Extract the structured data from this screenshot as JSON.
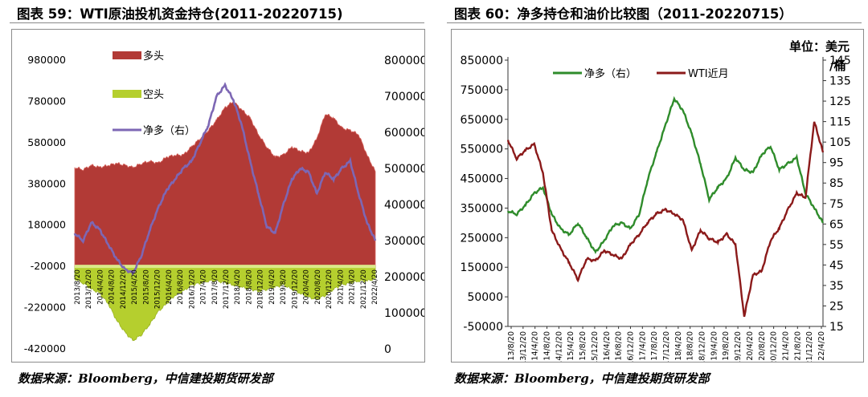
{
  "left": {
    "title": "图表 59：WTI原油投机资金持仓(2011-20220715)",
    "source": "数据来源：Bloomberg，中信建投期货研发部"
  },
  "right": {
    "title": "图表 60：净多持仓和油价比较图（2011-20220715）",
    "source": "数据来源：Bloomberg，中信建投期货研发部"
  },
  "colors": {
    "long_fill": "#b23a36",
    "long_fill_light": "#d4625c",
    "short_fill": "#b5cf2e",
    "net_line_left": "#7d67b4",
    "net_line_right": "#2f8c2b",
    "wti_line": "#8b1a1a"
  },
  "chart_data": [
    {
      "type": "area",
      "legend": [
        "多头",
        "空头",
        "净多（右）"
      ],
      "legend_position": "top-left",
      "x_ticks": [
        "2013/8/20",
        "2013/12/20",
        "2014/4/20",
        "2014/8/20",
        "2014/12/20",
        "2015/4/20",
        "2015/8/20",
        "2015/12/20",
        "2016/4/20",
        "2016/8/20",
        "2016/12/20",
        "2017/4/20",
        "2017/8/20",
        "2017/12/20",
        "2018/4/20",
        "2018/8/20",
        "2018/12/20",
        "2019/4/20",
        "2019/8/20",
        "2019/12/20",
        "2020/4/20",
        "2020/8/20",
        "2020/12/20",
        "2021/4/20",
        "2021/8/20",
        "2021/12/20",
        "2022/4/20"
      ],
      "y_left": {
        "ticks": [
          "980000",
          "780000",
          "580000",
          "380000",
          "180000",
          "-20000",
          "-220000",
          "-420000"
        ],
        "range": [
          -420000,
          980000
        ]
      },
      "y_right": {
        "ticks": [
          "800000",
          "700000",
          "600000",
          "500000",
          "400000",
          "300000",
          "200000",
          "100000",
          "0"
        ],
        "range": [
          0,
          800000
        ]
      },
      "grid": false,
      "series": [
        {
          "name": "多头",
          "axis": "left",
          "x": [
            0,
            1,
            2,
            3,
            4,
            5,
            6,
            7,
            8,
            9,
            10,
            11,
            12,
            13,
            14,
            15,
            16,
            17,
            18,
            19,
            20,
            21,
            22,
            23,
            24,
            25,
            26,
            27,
            28,
            29,
            30,
            31,
            32,
            33,
            34,
            35,
            36
          ],
          "values": [
            460000,
            450000,
            470000,
            460000,
            470000,
            480000,
            470000,
            460000,
            480000,
            490000,
            480000,
            510000,
            520000,
            520000,
            560000,
            600000,
            640000,
            690000,
            750000,
            780000,
            740000,
            700000,
            620000,
            560000,
            510000,
            520000,
            560000,
            540000,
            530000,
            600000,
            720000,
            700000,
            650000,
            640000,
            620000,
            520000,
            440000
          ]
        },
        {
          "name": "空头",
          "axis": "left",
          "x": [
            0,
            1,
            2,
            3,
            4,
            5,
            6,
            7,
            8,
            9,
            10,
            11,
            12,
            13,
            14,
            15,
            16,
            17,
            18,
            19,
            20,
            21,
            22,
            23,
            24,
            25,
            26,
            27,
            28,
            29,
            30,
            31,
            32,
            33,
            34,
            35,
            36
          ],
          "values": [
            -80000,
            -100000,
            -130000,
            -150000,
            -200000,
            -280000,
            -340000,
            -380000,
            -350000,
            -300000,
            -240000,
            -200000,
            -160000,
            -140000,
            -110000,
            -100000,
            -90000,
            -90000,
            -100000,
            -110000,
            -120000,
            -130000,
            -140000,
            -130000,
            -120000,
            -110000,
            -130000,
            -150000,
            -170000,
            -180000,
            -160000,
            -130000,
            -110000,
            -100000,
            -90000,
            -90000,
            -80000
          ]
        },
        {
          "name": "净多（右）",
          "axis": "right",
          "x": [
            0,
            1,
            2,
            3,
            4,
            5,
            6,
            7,
            8,
            9,
            10,
            11,
            12,
            13,
            14,
            15,
            16,
            17,
            18,
            19,
            20,
            21,
            22,
            23,
            24,
            25,
            26,
            27,
            28,
            29,
            30,
            31,
            32,
            33,
            34,
            35,
            36
          ],
          "values": [
            320000,
            300000,
            350000,
            330000,
            290000,
            250000,
            220000,
            210000,
            260000,
            330000,
            390000,
            440000,
            470000,
            500000,
            520000,
            570000,
            620000,
            700000,
            730000,
            690000,
            620000,
            520000,
            430000,
            340000,
            320000,
            400000,
            470000,
            500000,
            490000,
            430000,
            490000,
            470000,
            500000,
            520000,
            430000,
            350000,
            300000
          ]
        }
      ]
    },
    {
      "type": "line",
      "legend": [
        "净多（右）",
        "WTI近月"
      ],
      "legend_position": "top",
      "unit_label": "单位：美元/桶",
      "x_ticks": [
        "13/8/20",
        "13/12/20",
        "14/4/20",
        "14/8/20",
        "14/12/20",
        "15/4/20",
        "15/8/20",
        "15/12/20",
        "16/4/20",
        "16/8/20",
        "16/12/20",
        "17/4/20",
        "17/8/20",
        "17/12/20",
        "18/4/20",
        "18/8/20",
        "18/12/20",
        "19/4/20",
        "19/8/20",
        "19/12/20",
        "20/4/20",
        "20/8/20",
        "20/12/20",
        "21/4/20",
        "21/8/20",
        "21/12/20",
        "22/4/20"
      ],
      "y_left": {
        "ticks": [
          "850000",
          "750000",
          "650000",
          "550000",
          "450000",
          "350000",
          "250000",
          "150000",
          "50000",
          "-50000"
        ],
        "range": [
          -50000,
          850000
        ]
      },
      "y_right": {
        "ticks": [
          "145",
          "135",
          "125",
          "115",
          "105",
          "95",
          "85",
          "75",
          "65",
          "55",
          "45",
          "35",
          "25",
          "15"
        ],
        "range": [
          15,
          145
        ]
      },
      "grid": false,
      "series": [
        {
          "name": "净多（右）",
          "axis": "left",
          "x": [
            0,
            1,
            2,
            3,
            4,
            5,
            6,
            7,
            8,
            9,
            10,
            11,
            12,
            13,
            14,
            15,
            16,
            17,
            18,
            19,
            20,
            21,
            22,
            23,
            24,
            25,
            26,
            27,
            28,
            29,
            30,
            31,
            32,
            33,
            34,
            35,
            36
          ],
          "values": [
            340000,
            330000,
            360000,
            400000,
            420000,
            330000,
            280000,
            260000,
            300000,
            250000,
            200000,
            240000,
            290000,
            300000,
            280000,
            330000,
            450000,
            540000,
            630000,
            720000,
            680000,
            600000,
            500000,
            380000,
            420000,
            450000,
            520000,
            480000,
            470000,
            530000,
            560000,
            480000,
            500000,
            520000,
            400000,
            350000,
            300000
          ]
        },
        {
          "name": "WTI近月",
          "axis": "right",
          "x": [
            0,
            1,
            2,
            3,
            4,
            5,
            6,
            7,
            8,
            9,
            10,
            11,
            12,
            13,
            14,
            15,
            16,
            17,
            18,
            19,
            20,
            21,
            22,
            23,
            24,
            25,
            26,
            27,
            28,
            29,
            30,
            31,
            32,
            33,
            34,
            35,
            36
          ],
          "values": [
            106,
            97,
            101,
            104,
            90,
            62,
            53,
            46,
            38,
            48,
            47,
            52,
            50,
            48,
            55,
            60,
            66,
            70,
            72,
            70,
            67,
            52,
            62,
            58,
            56,
            60,
            55,
            20,
            40,
            42,
            57,
            63,
            72,
            80,
            78,
            115,
            100
          ]
        }
      ]
    }
  ]
}
